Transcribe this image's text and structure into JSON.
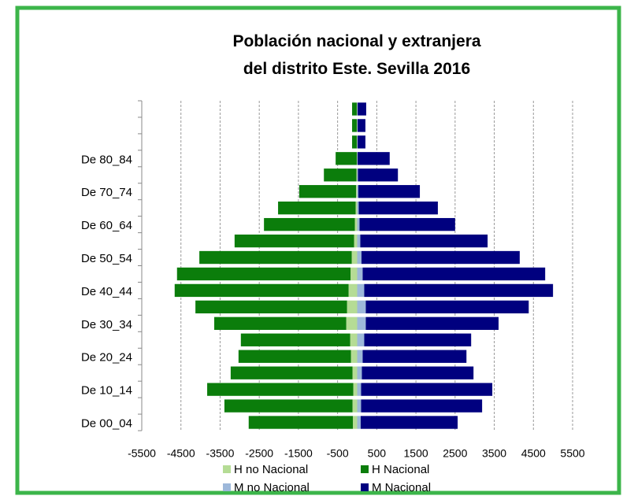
{
  "chart_data": {
    "type": "bar",
    "orientation": "horizontal",
    "stacked": true,
    "title": "Población nacional y extranjera\ndel distrito Este. Sevilla 2016",
    "categories": [
      "De 00_04",
      null,
      "De 10_14",
      null,
      "De 20_24",
      null,
      "De 30_34",
      null,
      "De 40_44",
      null,
      "De 50_54",
      null,
      "De 60_64",
      null,
      "De 70_74",
      null,
      "De 80_84",
      null,
      null,
      null
    ],
    "series": [
      {
        "name": "H no Nacional",
        "color": "#b5dc95",
        "values": [
          -110,
          -120,
          -100,
          -120,
          -160,
          -180,
          -280,
          -260,
          -220,
          -170,
          -140,
          -80,
          -60,
          -40,
          -30,
          -20,
          -10,
          -10,
          -10,
          -10
        ]
      },
      {
        "name": "H Nacional",
        "color": "#0b7d0b",
        "values": [
          -2660,
          -3270,
          -3730,
          -3110,
          -2870,
          -2790,
          -3370,
          -3870,
          -4440,
          -4430,
          -3890,
          -3050,
          -2320,
          -1980,
          -1450,
          -830,
          -540,
          -120,
          -120,
          -120
        ]
      },
      {
        "name": "M no Nacional",
        "color": "#9db8da",
        "values": [
          90,
          100,
          100,
          120,
          140,
          180,
          220,
          220,
          180,
          140,
          110,
          80,
          60,
          40,
          30,
          20,
          10,
          10,
          10,
          10
        ]
      },
      {
        "name": "M Nacional",
        "color": "#00007f",
        "values": [
          2475,
          3090,
          3350,
          2850,
          2650,
          2730,
          3390,
          4160,
          4820,
          4660,
          4040,
          3250,
          2440,
          2020,
          1570,
          1020,
          820,
          200,
          200,
          220
        ]
      }
    ],
    "xlim": [
      -5500,
      5500
    ],
    "xticks": [
      -5500,
      -4500,
      -3500,
      -2500,
      -1500,
      -500,
      500,
      1500,
      2500,
      3500,
      4500,
      5500
    ],
    "grid": true
  }
}
